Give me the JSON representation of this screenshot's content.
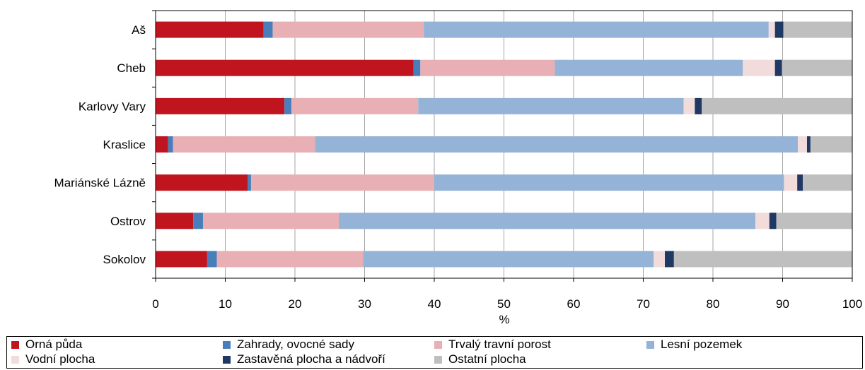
{
  "chart_data": {
    "type": "bar",
    "orientation": "horizontal",
    "stacked": true,
    "percent_stacked": true,
    "categories": [
      "Aš",
      "Cheb",
      "Karlovy Vary",
      "Kraslice",
      "Mariánské Lázně",
      "Ostrov",
      "Sokolov"
    ],
    "series": [
      {
        "name": "Orná půda",
        "color": "#c0141f",
        "values": [
          15.5,
          37.0,
          18.5,
          1.8,
          13.2,
          5.4,
          7.4
        ]
      },
      {
        "name": "Zahrady, ovocné sady",
        "color": "#4a7ebb",
        "values": [
          1.3,
          1.0,
          1.0,
          0.7,
          0.5,
          1.4,
          1.4
        ]
      },
      {
        "name": "Trvalý travní porost",
        "color": "#e8b0b4",
        "values": [
          21.7,
          19.3,
          18.2,
          20.4,
          26.3,
          19.5,
          21.0
        ]
      },
      {
        "name": "Lesní pozemek",
        "color": "#95b3d7",
        "values": [
          49.5,
          27.0,
          38.1,
          69.3,
          50.2,
          59.8,
          41.7
        ]
      },
      {
        "name": "Vodní plocha",
        "color": "#f2dcdb",
        "values": [
          0.9,
          4.6,
          1.6,
          1.3,
          1.9,
          2.0,
          1.6
        ]
      },
      {
        "name": "Zastavěná plocha a nádvoří",
        "color": "#1f3864",
        "values": [
          1.2,
          1.0,
          1.0,
          0.5,
          0.8,
          1.0,
          1.3
        ]
      },
      {
        "name": "Ostatní plocha",
        "color": "#bfbfbf",
        "values": [
          9.9,
          10.1,
          21.6,
          6.0,
          7.1,
          10.9,
          25.6
        ]
      }
    ],
    "xlabel": "%",
    "xlim": [
      0,
      100
    ],
    "xticks": [
      0,
      10,
      20,
      30,
      40,
      50,
      60,
      70,
      80,
      90,
      100
    ],
    "grid": "vertical",
    "legend_position": "bottom"
  }
}
